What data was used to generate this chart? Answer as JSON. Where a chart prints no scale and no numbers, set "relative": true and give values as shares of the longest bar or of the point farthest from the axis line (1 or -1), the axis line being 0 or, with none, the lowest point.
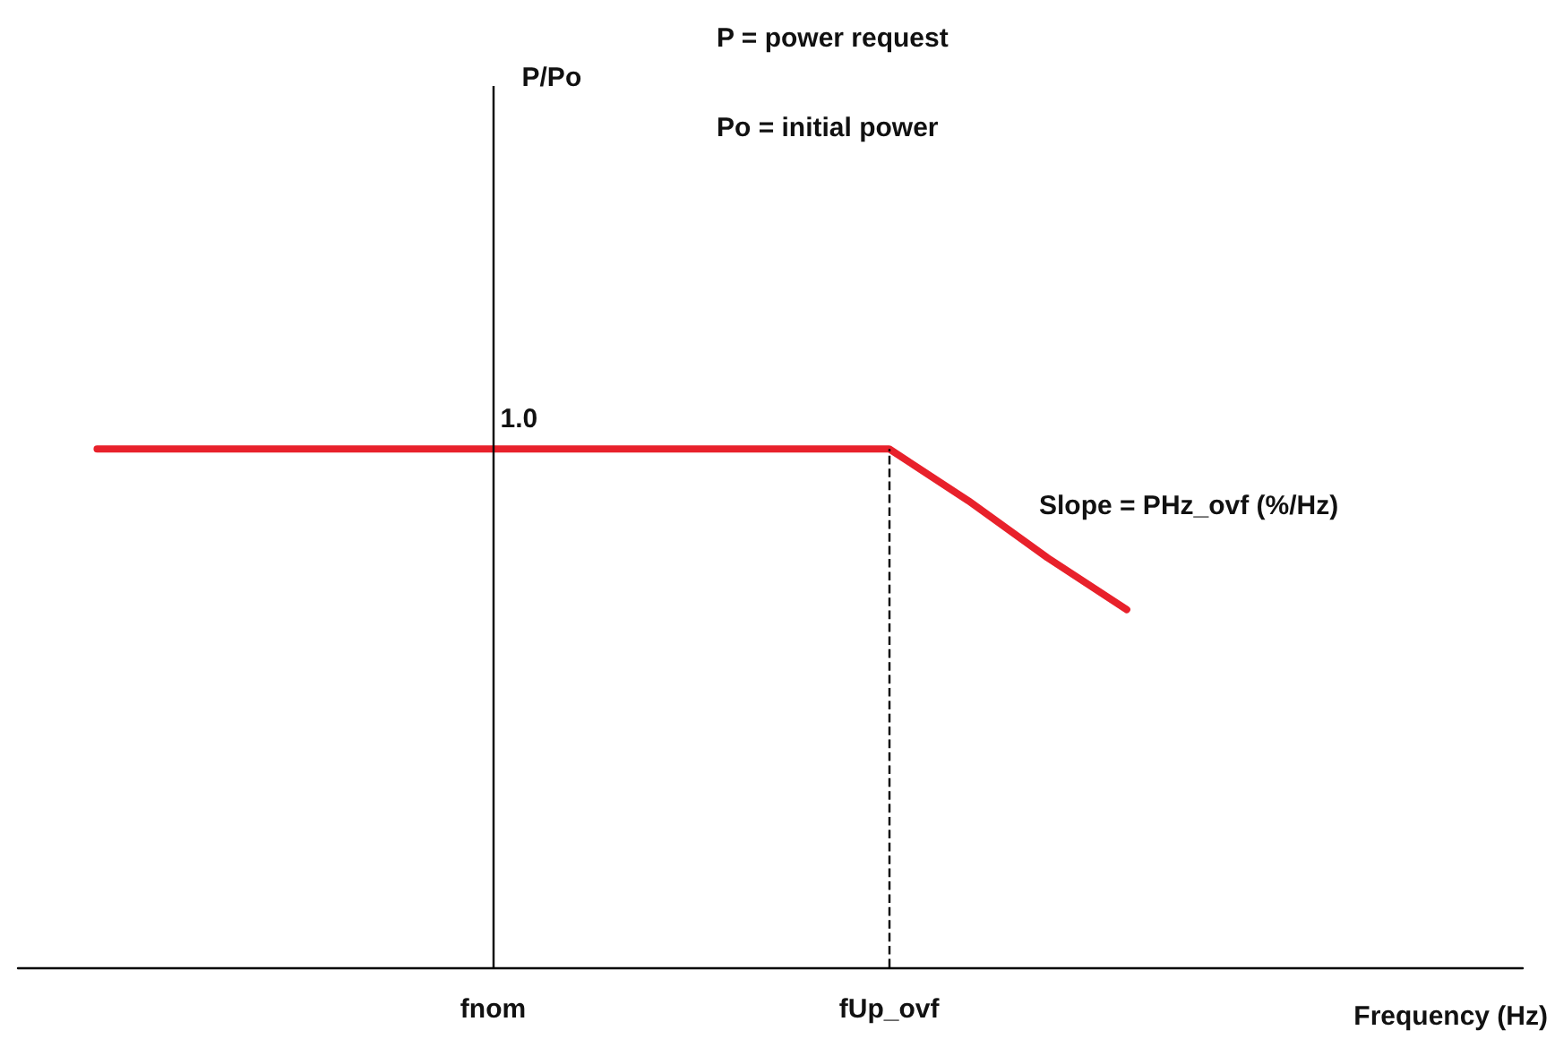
{
  "chart_data": {
    "type": "line",
    "relative": true,
    "xlabel": "Frequency (Hz)",
    "categories": [
      null,
      null,
      null,
      null,
      null,
      null,
      "fnom",
      null,
      null,
      null,
      null,
      "fUp_ovf",
      null,
      null,
      null,
      null,
      null,
      null,
      null,
      null
    ],
    "series": [
      {
        "color": "#e8212b",
        "values": [
          null,
          1,
          1,
          1,
          1,
          1,
          1,
          1,
          1,
          1,
          1,
          1,
          0.9,
          0.79,
          0.69,
          null,
          null,
          null,
          null,
          null
        ]
      }
    ],
    "ref_lines": [
      {
        "axis": "x",
        "value": "fnom",
        "color": "#000000",
        "line_style": "solid"
      },
      {
        "axis": "x",
        "value": "fUp_ovf",
        "color": "#000000",
        "line_style": "dashed"
      }
    ],
    "annotations": [
      "P/Po",
      "P = power request",
      "Po = initial power",
      {
        "text": "1.0",
        "x": "fnom",
        "y": 1
      },
      "Slope = PHz_ovf (%/Hz)"
    ],
    "grid": false,
    "marker": "none",
    "line_style": "solid"
  }
}
